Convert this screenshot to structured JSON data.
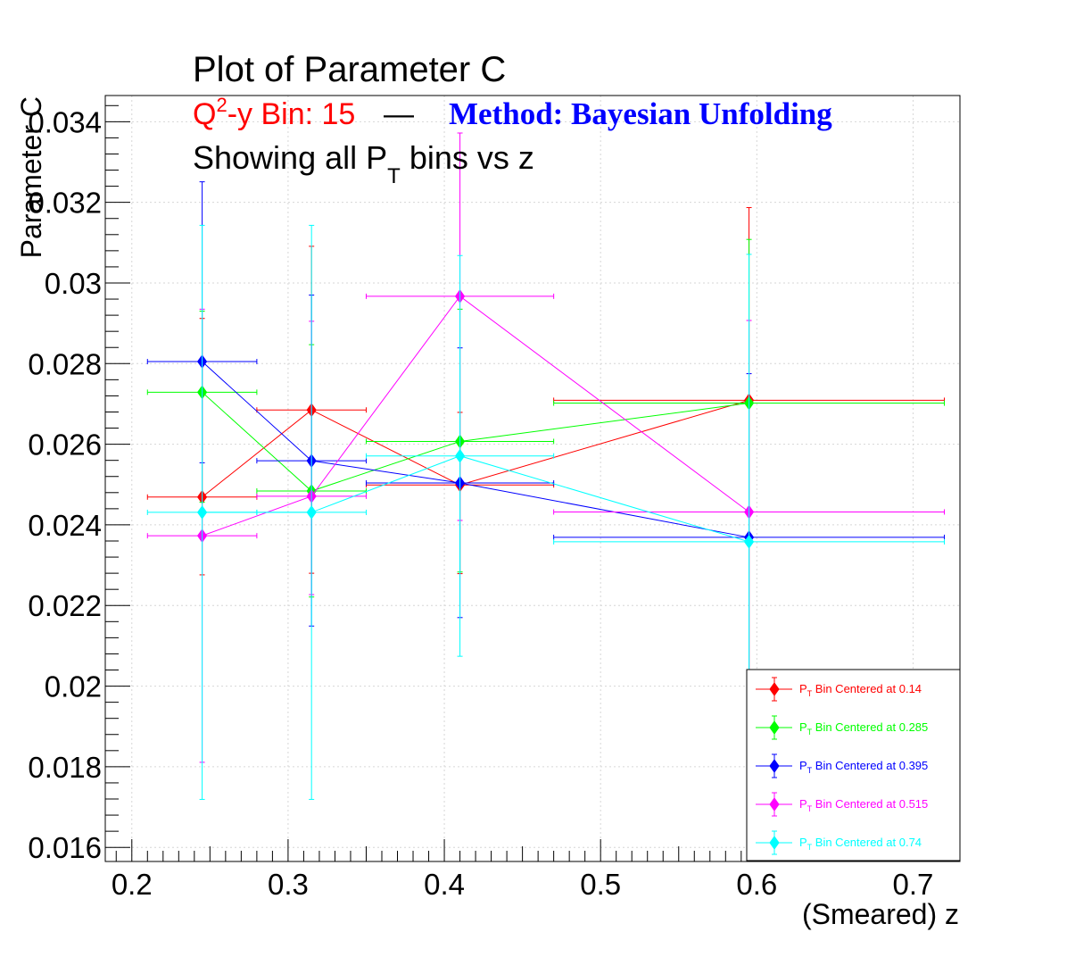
{
  "chart_data": {
    "type": "scatter",
    "title": {
      "main": "Plot of Parameter C",
      "line2_prefix": "Q",
      "line2_sup": "2",
      "line2_rest": "-y Bin: 15",
      "dash": "—",
      "method": "Method: Bayesian Unfolding",
      "line3_pre": "Showing all P",
      "line3_sub": "T",
      "line3_post": " bins vs z"
    },
    "xlabel": "(Smeared) z",
    "ylabel": "Parameter C",
    "xlim": [
      0.183,
      0.73
    ],
    "ylim": [
      0.01565,
      0.03465
    ],
    "x_ticks": [
      0.2,
      0.3,
      0.4,
      0.5,
      0.6,
      0.7
    ],
    "x_tick_labels": [
      "0.2",
      "0.3",
      "0.4",
      "0.5",
      "0.6",
      "0.7"
    ],
    "y_ticks": [
      0.016,
      0.018,
      0.02,
      0.022,
      0.024,
      0.026,
      0.028,
      0.03,
      0.032,
      0.034
    ],
    "y_tick_labels": [
      "0.016",
      "0.018",
      "0.02",
      "0.022",
      "0.024",
      "0.026",
      "0.028",
      "0.03",
      "0.032",
      "0.034"
    ],
    "grid": true,
    "legend_position": "bottom-right",
    "series": [
      {
        "name_pre": "P",
        "name_sub": "T",
        "name_post": " Bin Centered at 0.14",
        "color": "#ff0000",
        "points": [
          {
            "x": 0.245,
            "xerr": [
              0.035,
              0.035
            ],
            "y": 0.02469,
            "yerr": [
              0.00193,
              0.00443
            ]
          },
          {
            "x": 0.315,
            "xerr": [
              0.035,
              0.035
            ],
            "y": 0.02685,
            "yerr": [
              0.00405,
              0.00406
            ]
          },
          {
            "x": 0.41,
            "xerr": [
              0.06,
              0.06
            ],
            "y": 0.02499,
            "yerr": [
              0.0022,
              0.0018
            ]
          },
          {
            "x": 0.595,
            "xerr": [
              0.125,
              0.125
            ],
            "y": 0.02709,
            "yerr": [
              0.00739,
              0.00478
            ]
          }
        ]
      },
      {
        "name_pre": "P",
        "name_sub": "T",
        "name_post": " Bin Centered at 0.285",
        "color": "#00ff00",
        "points": [
          {
            "x": 0.245,
            "xerr": [
              0.035,
              0.035
            ],
            "y": 0.02729,
            "yerr": [
              0.00273,
              0.00201
            ]
          },
          {
            "x": 0.315,
            "xerr": [
              0.035,
              0.035
            ],
            "y": 0.02484,
            "yerr": [
              0.00263,
              0.00363
            ]
          },
          {
            "x": 0.41,
            "xerr": [
              0.06,
              0.06
            ],
            "y": 0.02607,
            "yerr": [
              0.00324,
              0.00328
            ]
          },
          {
            "x": 0.595,
            "xerr": [
              0.125,
              0.125
            ],
            "y": 0.02702,
            "yerr": [
              0.00741,
              0.00406
            ]
          }
        ]
      },
      {
        "name_pre": "P",
        "name_sub": "T",
        "name_post": " Bin Centered at 0.395",
        "color": "#0000ff",
        "points": [
          {
            "x": 0.245,
            "xerr": [
              0.035,
              0.035
            ],
            "y": 0.02805,
            "yerr": [
              0.00251,
              0.00446
            ]
          },
          {
            "x": 0.315,
            "xerr": [
              0.035,
              0.035
            ],
            "y": 0.02559,
            "yerr": [
              0.0041,
              0.00411
            ]
          },
          {
            "x": 0.41,
            "xerr": [
              0.06,
              0.06
            ],
            "y": 0.02504,
            "yerr": [
              0.00334,
              0.00335
            ]
          },
          {
            "x": 0.595,
            "xerr": [
              0.125,
              0.125
            ],
            "y": 0.02369,
            "yerr": [
              0.00405,
              0.00406
            ]
          }
        ]
      },
      {
        "name_pre": "P",
        "name_sub": "T",
        "name_post": " Bin Centered at 0.515",
        "color": "#ff00ff",
        "points": [
          {
            "x": 0.245,
            "xerr": [
              0.035,
              0.035
            ],
            "y": 0.02373,
            "yerr": [
              0.00562,
              0.00562
            ]
          },
          {
            "x": 0.315,
            "xerr": [
              0.035,
              0.035
            ],
            "y": 0.02471,
            "yerr": [
              0.00244,
              0.00434
            ]
          },
          {
            "x": 0.41,
            "xerr": [
              0.06,
              0.06
            ],
            "y": 0.02967,
            "yerr": [
              0.00556,
              0.00405
            ]
          },
          {
            "x": 0.595,
            "xerr": [
              0.125,
              0.125
            ],
            "y": 0.02432,
            "yerr": [
              0.0047,
              0.00475
            ]
          }
        ]
      },
      {
        "name_pre": "P",
        "name_sub": "T",
        "name_post": " Bin Centered at 0.74",
        "color": "#00ffff",
        "points": [
          {
            "x": 0.245,
            "xerr": [
              0.035,
              0.035
            ],
            "y": 0.02431,
            "yerr": [
              0.00712,
              0.00712
            ]
          },
          {
            "x": 0.315,
            "xerr": [
              0.035,
              0.035
            ],
            "y": 0.02431,
            "yerr": [
              0.00712,
              0.00712
            ]
          },
          {
            "x": 0.41,
            "xerr": [
              0.06,
              0.06
            ],
            "y": 0.02571,
            "yerr": [
              0.00497,
              0.00497
            ]
          },
          {
            "x": 0.595,
            "xerr": [
              0.125,
              0.125
            ],
            "y": 0.02358,
            "yerr": [
              0.00713,
              0.00713
            ]
          }
        ]
      }
    ]
  }
}
